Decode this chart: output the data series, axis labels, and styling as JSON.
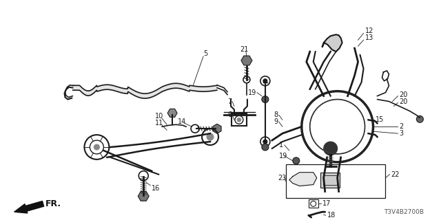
{
  "bg_color": "#ffffff",
  "diagram_color": "#1a1a1a",
  "fig_width": 6.4,
  "fig_height": 3.2,
  "dpi": 100,
  "watermark": "T3V4B2700B"
}
